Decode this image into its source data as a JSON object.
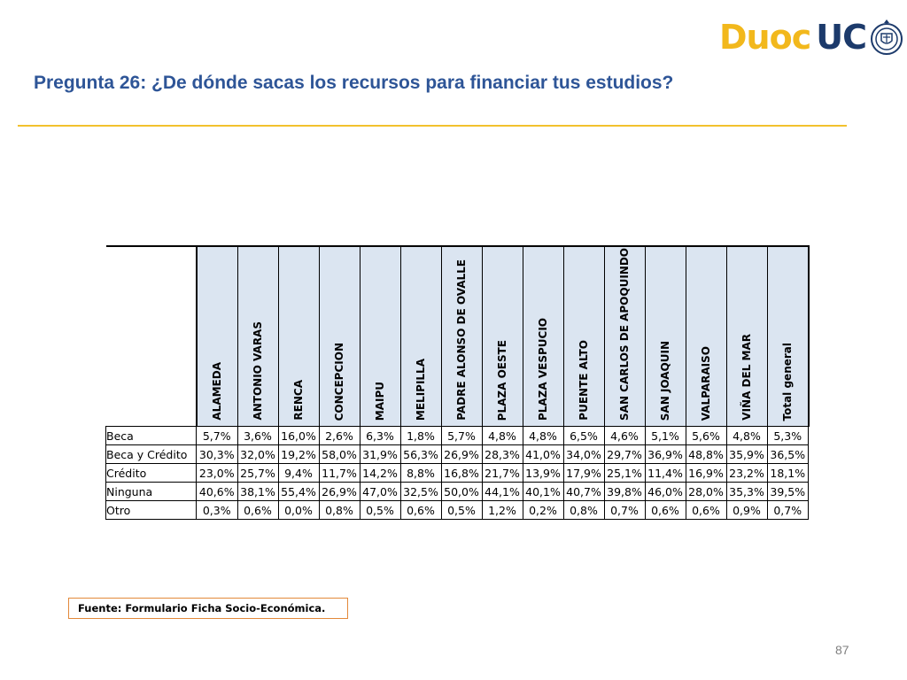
{
  "logo": {
    "duoc": "Duoc",
    "uc": "UC",
    "colors": {
      "duoc": "#f2b81c",
      "uc": "#1c3a6b"
    },
    "seal_icon": "university-seal-icon"
  },
  "title": "Pregunta 26: ¿De dónde sacas los recursos para financiar tus estudios?",
  "table": {
    "columns": [
      "ALAMEDA",
      "ANTONIO VARAS",
      "RENCA",
      "CONCEPCION",
      "MAIPU",
      "MELIPILLA",
      "PADRE ALONSO DE OVALLE",
      "PLAZA OESTE",
      "PLAZA VESPUCIO",
      "PUENTE ALTO",
      "SAN CARLOS DE APOQUINDO",
      "SAN JOAQUIN",
      "VALPARAISO",
      "VIÑA DEL MAR",
      "Total general"
    ],
    "rows": [
      {
        "label": "Beca",
        "values": [
          "5,7%",
          "3,6%",
          "16,0%",
          "2,6%",
          "6,3%",
          "1,8%",
          "5,7%",
          "4,8%",
          "4,8%",
          "6,5%",
          "4,6%",
          "5,1%",
          "5,6%",
          "4,8%",
          "5,3%"
        ]
      },
      {
        "label": "Beca y Crédito",
        "values": [
          "30,3%",
          "32,0%",
          "19,2%",
          "58,0%",
          "31,9%",
          "56,3%",
          "26,9%",
          "28,3%",
          "41,0%",
          "34,0%",
          "29,7%",
          "36,9%",
          "48,8%",
          "35,9%",
          "36,5%"
        ]
      },
      {
        "label": "Crédito",
        "values": [
          "23,0%",
          "25,7%",
          "9,4%",
          "11,7%",
          "14,2%",
          "8,8%",
          "16,8%",
          "21,7%",
          "13,9%",
          "17,9%",
          "25,1%",
          "11,4%",
          "16,9%",
          "23,2%",
          "18,1%"
        ]
      },
      {
        "label": "Ninguna",
        "values": [
          "40,6%",
          "38,1%",
          "55,4%",
          "26,9%",
          "47,0%",
          "32,5%",
          "50,0%",
          "44,1%",
          "40,1%",
          "40,7%",
          "39,8%",
          "46,0%",
          "28,0%",
          "35,3%",
          "39,5%"
        ]
      },
      {
        "label": "Otro",
        "values": [
          "0,3%",
          "0,6%",
          "0,0%",
          "0,8%",
          "0,5%",
          "0,6%",
          "0,5%",
          "1,2%",
          "0,2%",
          "0,8%",
          "0,7%",
          "0,6%",
          "0,6%",
          "0,9%",
          "0,7%"
        ]
      }
    ]
  },
  "source": "Fuente: Formulario Ficha Socio-Económica.",
  "page_number": "87",
  "colors": {
    "title": "#2e5597",
    "rule": "#f2c12e",
    "header_fill": "#dbe5f1",
    "source_border": "#e3893a"
  }
}
